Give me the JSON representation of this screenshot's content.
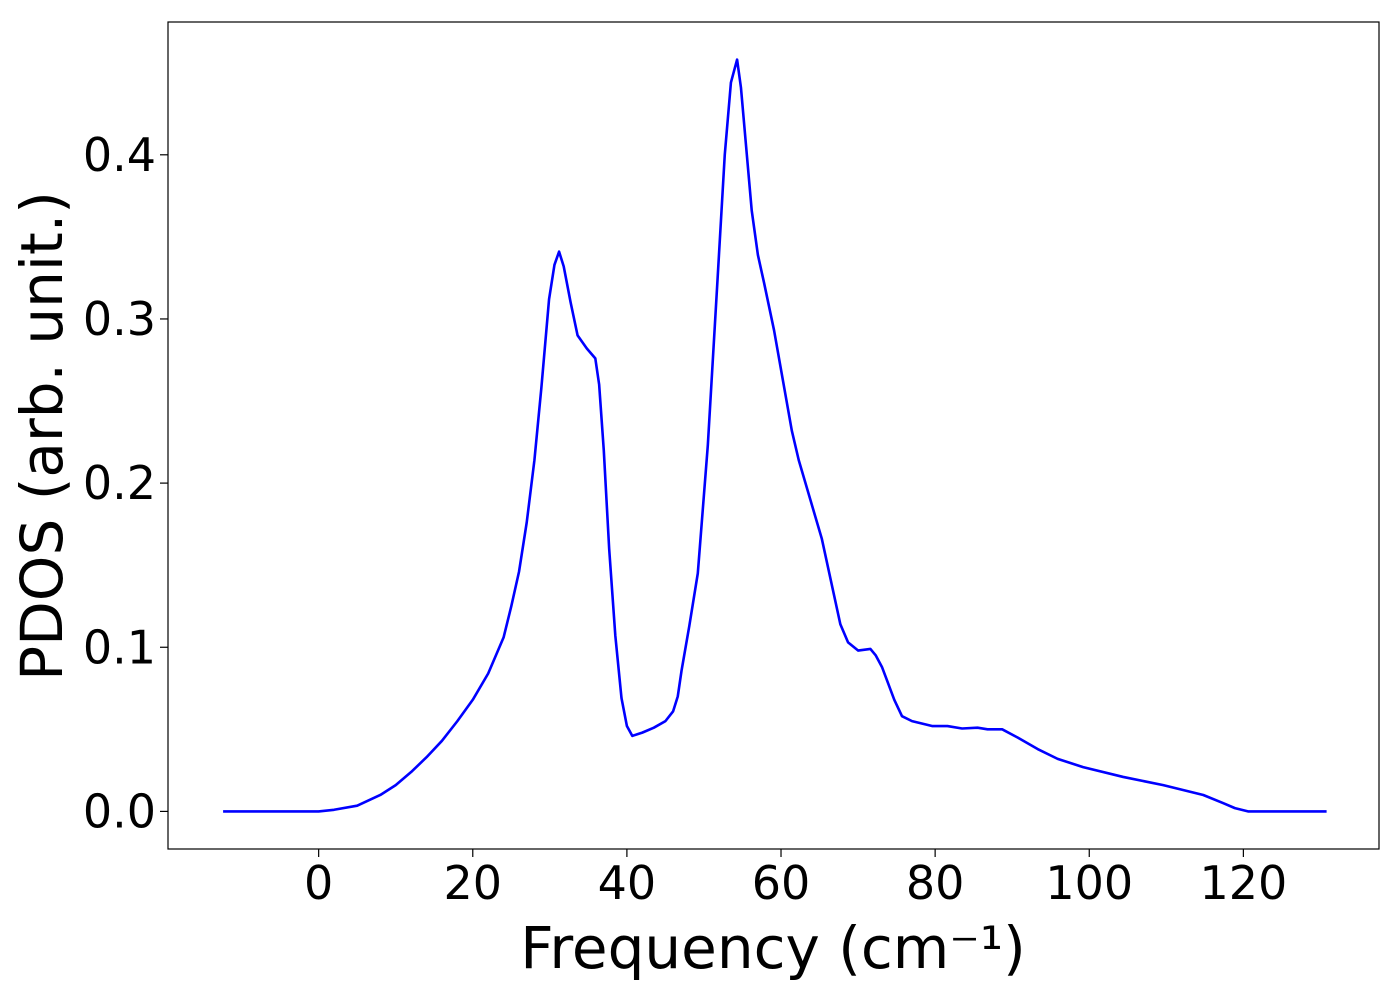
{
  "chart_data": {
    "type": "line",
    "xlabel": "Frequency (cm⁻¹)",
    "ylabel": "PDOS (arb. unit.)",
    "xlim": [
      -19.55,
      137.6
    ],
    "ylim": [
      -0.0229,
      0.4809
    ],
    "xticks": [
      0,
      20,
      40,
      60,
      80,
      100,
      120
    ],
    "yticks": [
      {
        "value": 0,
        "label": "0.0"
      },
      0.1,
      0.2,
      0.3,
      0.4
    ],
    "grid": false,
    "series": [
      {
        "name": "PDOS",
        "color": "#0000ff",
        "x": [
          -12.4,
          0,
          2,
          5,
          8,
          10,
          12,
          14,
          16,
          18,
          20,
          22,
          24,
          25,
          26,
          27,
          28,
          28.9,
          29.9,
          30.6,
          31.2,
          31.8,
          32.7,
          33.6,
          34.8,
          35.9,
          36.4,
          37,
          37.7,
          38.5,
          39.3,
          40,
          40.7,
          42,
          43.5,
          45,
          46,
          46.6,
          47.1,
          48.1,
          49.2,
          50.5,
          51.8,
          52.7,
          53.5,
          54.3,
          54.8,
          56.2,
          57,
          57.8,
          59.1,
          61.4,
          62.3,
          65.3,
          67.7,
          68.7,
          70,
          71.6,
          72.3,
          73.1,
          74.7,
          75.7,
          77,
          79.6,
          81.6,
          83.5,
          85.5,
          86.8,
          88.7,
          90.7,
          93.3,
          95.9,
          99.2,
          104.4,
          109.6,
          114.8,
          117.4,
          118.9,
          120.6,
          130.8
        ],
        "values": [
          0,
          0,
          0.001,
          0.0035,
          0.01,
          0.016,
          0.024,
          0.033,
          0.043,
          0.055,
          0.068,
          0.084,
          0.106,
          0.125,
          0.146,
          0.176,
          0.214,
          0.258,
          0.312,
          0.333,
          0.341,
          0.332,
          0.31,
          0.29,
          0.282,
          0.276,
          0.26,
          0.22,
          0.16,
          0.107,
          0.069,
          0.052,
          0.046,
          0.048,
          0.051,
          0.055,
          0.061,
          0.07,
          0.086,
          0.113,
          0.145,
          0.223,
          0.327,
          0.4,
          0.444,
          0.458,
          0.441,
          0.366,
          0.339,
          0.322,
          0.293,
          0.232,
          0.214,
          0.166,
          0.114,
          0.103,
          0.098,
          0.099,
          0.095,
          0.088,
          0.068,
          0.058,
          0.055,
          0.052,
          0.052,
          0.0505,
          0.051,
          0.05,
          0.05,
          0.045,
          0.038,
          0.032,
          0.027,
          0.021,
          0.016,
          0.01,
          0.005,
          0.002,
          0,
          0
        ]
      }
    ]
  }
}
